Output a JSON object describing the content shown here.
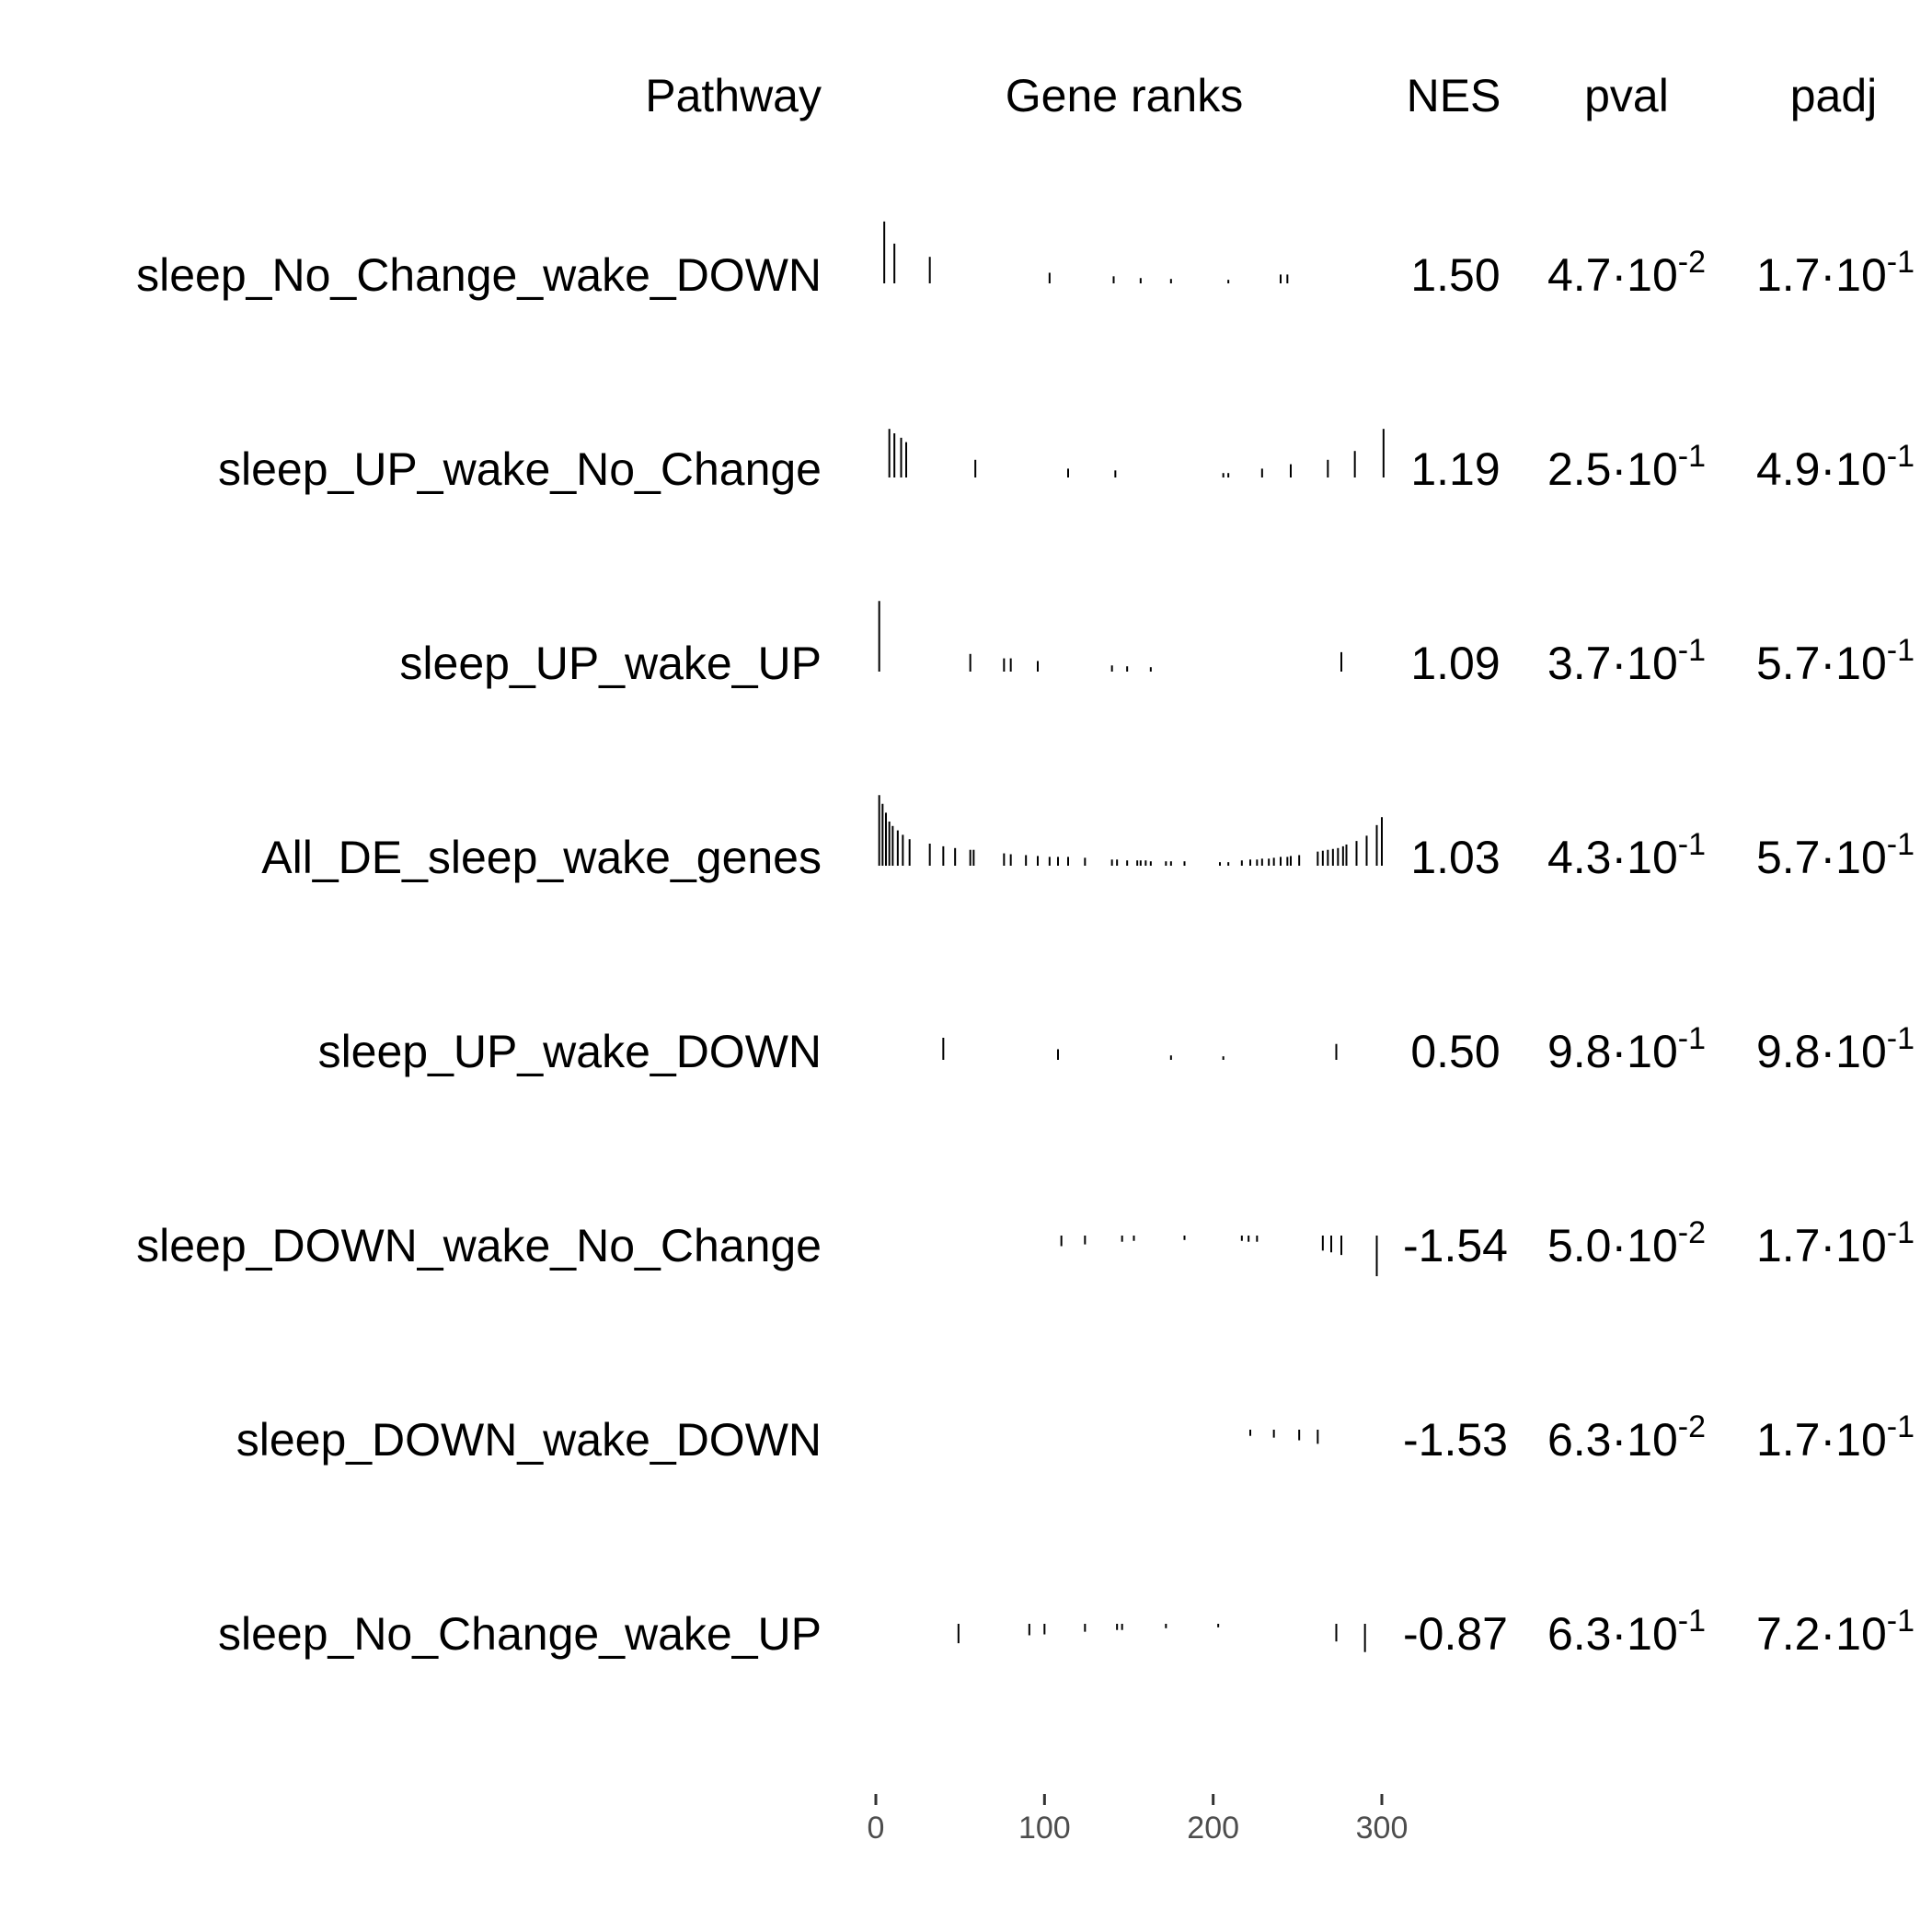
{
  "chart_data": {
    "type": "table",
    "columns": {
      "pathway": "Pathway",
      "ranks": "Gene ranks",
      "nes": "NES",
      "pval": "pval",
      "padj": "padj"
    },
    "x_axis": {
      "ticks": [
        0,
        100,
        200,
        300
      ],
      "range": [
        0,
        300
      ]
    },
    "rows": [
      {
        "pathway": "sleep_No_Change_wake_DOWN",
        "nes": "1.50",
        "pval": {
          "mantissa": "4.7",
          "exponent": "-2"
        },
        "padj": {
          "mantissa": "1.7",
          "exponent": "-1"
        },
        "hits": [
          [
            5,
            0.7
          ],
          [
            11,
            0.45
          ],
          [
            32,
            0.3
          ],
          [
            103,
            0.12
          ],
          [
            141,
            0.08
          ],
          [
            157,
            0.06
          ],
          [
            175,
            0.05
          ],
          [
            209,
            0.04
          ],
          [
            240,
            0.1
          ],
          [
            244,
            0.1
          ]
        ]
      },
      {
        "pathway": "sleep_UP_wake_No_Change",
        "nes": "1.19",
        "pval": {
          "mantissa": "2.5",
          "exponent": "-1"
        },
        "padj": {
          "mantissa": "4.9",
          "exponent": "-1"
        },
        "hits": [
          [
            8,
            0.55
          ],
          [
            11,
            0.5
          ],
          [
            15,
            0.45
          ],
          [
            18,
            0.4
          ],
          [
            59,
            0.2
          ],
          [
            114,
            0.1
          ],
          [
            142,
            0.08
          ],
          [
            206,
            0.05
          ],
          [
            209,
            0.05
          ],
          [
            229,
            0.1
          ],
          [
            246,
            0.15
          ],
          [
            268,
            0.2
          ],
          [
            284,
            0.3
          ],
          [
            301,
            0.55
          ]
        ]
      },
      {
        "pathway": "sleep_UP_wake_UP",
        "nes": "1.09",
        "pval": {
          "mantissa": "3.7",
          "exponent": "-1"
        },
        "padj": {
          "mantissa": "5.7",
          "exponent": "-1"
        },
        "hits": [
          [
            2,
            0.8
          ],
          [
            56,
            0.2
          ],
          [
            76,
            0.15
          ],
          [
            80,
            0.15
          ],
          [
            96,
            0.12
          ],
          [
            140,
            0.07
          ],
          [
            149,
            0.06
          ],
          [
            163,
            0.05
          ],
          [
            276,
            0.22
          ]
        ]
      },
      {
        "pathway": "All_DE_sleep_wake_genes",
        "nes": "1.03",
        "pval": {
          "mantissa": "4.3",
          "exponent": "-1"
        },
        "padj": {
          "mantissa": "5.7",
          "exponent": "-1"
        },
        "hits": [
          [
            2,
            0.8
          ],
          [
            4,
            0.7
          ],
          [
            6,
            0.6
          ],
          [
            8,
            0.5
          ],
          [
            10,
            0.45
          ],
          [
            13,
            0.4
          ],
          [
            16,
            0.35
          ],
          [
            20,
            0.3
          ],
          [
            32,
            0.25
          ],
          [
            40,
            0.22
          ],
          [
            47,
            0.2
          ],
          [
            56,
            0.18
          ],
          [
            58,
            0.18
          ],
          [
            76,
            0.14
          ],
          [
            80,
            0.13
          ],
          [
            89,
            0.12
          ],
          [
            96,
            0.11
          ],
          [
            103,
            0.1
          ],
          [
            108,
            0.1
          ],
          [
            114,
            0.1
          ],
          [
            124,
            0.09
          ],
          [
            140,
            0.07
          ],
          [
            143,
            0.07
          ],
          [
            149,
            0.06
          ],
          [
            155,
            0.06
          ],
          [
            157,
            0.06
          ],
          [
            160,
            0.06
          ],
          [
            163,
            0.05
          ],
          [
            172,
            0.05
          ],
          [
            175,
            0.05
          ],
          [
            183,
            0.05
          ],
          [
            204,
            0.04
          ],
          [
            209,
            0.04
          ],
          [
            217,
            0.06
          ],
          [
            222,
            0.07
          ],
          [
            226,
            0.07
          ],
          [
            229,
            0.08
          ],
          [
            233,
            0.08
          ],
          [
            236,
            0.09
          ],
          [
            240,
            0.1
          ],
          [
            244,
            0.1
          ],
          [
            246,
            0.11
          ],
          [
            251,
            0.12
          ],
          [
            262,
            0.16
          ],
          [
            265,
            0.17
          ],
          [
            268,
            0.18
          ],
          [
            271,
            0.19
          ],
          [
            274,
            0.2
          ],
          [
            277,
            0.22
          ],
          [
            279,
            0.24
          ],
          [
            285,
            0.28
          ],
          [
            291,
            0.34
          ],
          [
            297,
            0.46
          ],
          [
            300,
            0.55
          ]
        ]
      },
      {
        "pathway": "sleep_UP_wake_DOWN",
        "nes": "0.50",
        "pval": {
          "mantissa": "9.8",
          "exponent": "-1"
        },
        "padj": {
          "mantissa": "9.8",
          "exponent": "-1"
        },
        "hits": [
          [
            40,
            0.25
          ],
          [
            108,
            0.12
          ],
          [
            175,
            0.05
          ],
          [
            206,
            0.04
          ],
          [
            273,
            0.18
          ]
        ]
      },
      {
        "pathway": "sleep_DOWN_wake_No_Change",
        "nes": "-1.54",
        "pval": {
          "mantissa": "5.0",
          "exponent": "-2"
        },
        "padj": {
          "mantissa": "1.7",
          "exponent": "-1"
        },
        "hits": [
          [
            110,
            0.12
          ],
          [
            124,
            0.1
          ],
          [
            146,
            0.07
          ],
          [
            153,
            0.06
          ],
          [
            183,
            0.05
          ],
          [
            217,
            0.06
          ],
          [
            221,
            0.07
          ],
          [
            226,
            0.07
          ],
          [
            265,
            0.17
          ],
          [
            270,
            0.19
          ],
          [
            276,
            0.22
          ],
          [
            297,
            0.46
          ]
        ]
      },
      {
        "pathway": "sleep_DOWN_wake_DOWN",
        "nes": "-1.53",
        "pval": {
          "mantissa": "6.3",
          "exponent": "-2"
        },
        "padj": {
          "mantissa": "1.7",
          "exponent": "-1"
        },
        "hits": [
          [
            222,
            0.07
          ],
          [
            236,
            0.09
          ],
          [
            251,
            0.12
          ],
          [
            262,
            0.16
          ]
        ]
      },
      {
        "pathway": "sleep_No_Change_wake_UP",
        "nes": "-0.87",
        "pval": {
          "mantissa": "6.3",
          "exponent": "-1"
        },
        "padj": {
          "mantissa": "7.2",
          "exponent": "-1"
        },
        "hits": [
          [
            49,
            0.22
          ],
          [
            91,
            0.13
          ],
          [
            100,
            0.12
          ],
          [
            124,
            0.09
          ],
          [
            143,
            0.07
          ],
          [
            146,
            0.07
          ],
          [
            172,
            0.05
          ],
          [
            203,
            0.04
          ],
          [
            273,
            0.2
          ],
          [
            290,
            0.32
          ]
        ]
      }
    ]
  }
}
